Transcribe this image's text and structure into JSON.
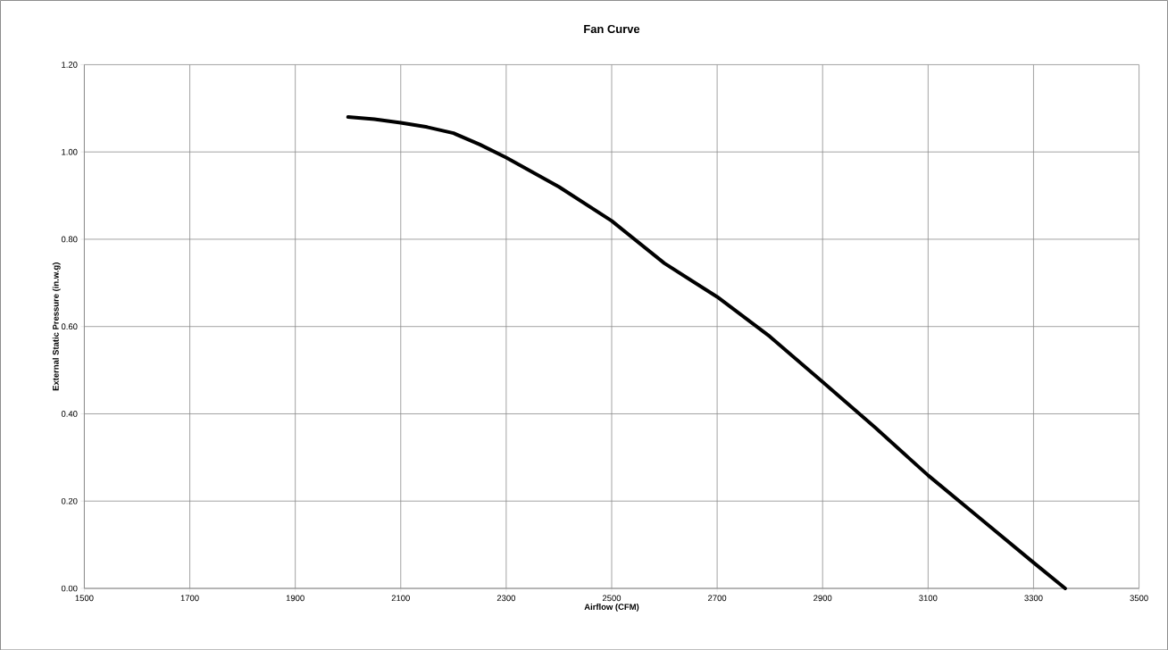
{
  "chart_data": {
    "type": "line",
    "title": "Fan Curve",
    "xlabel": "Airflow (CFM)",
    "ylabel": "External Static Pressure (in.w.g)",
    "x": [
      2000,
      2050,
      2100,
      2150,
      2200,
      2250,
      2300,
      2400,
      2500,
      2600,
      2700,
      2800,
      2900,
      3000,
      3100,
      3200,
      3300,
      3360
    ],
    "values": [
      1.08,
      1.075,
      1.067,
      1.057,
      1.043,
      1.017,
      0.987,
      0.92,
      0.842,
      0.745,
      0.668,
      0.577,
      0.473,
      0.368,
      0.259,
      0.159,
      0.059,
      0.0
    ],
    "color": "#000000",
    "line_style": "solid",
    "marker": "none",
    "grid": true,
    "xlim": [
      1500,
      3500
    ],
    "ylim": [
      0,
      1.2
    ],
    "xticks": [
      1500,
      1700,
      1900,
      2100,
      2300,
      2500,
      2700,
      2900,
      3100,
      3300,
      3500
    ],
    "yticks": [
      {
        "value": 0,
        "label": "0.00"
      },
      {
        "value": 0.2,
        "label": "0.20"
      },
      {
        "value": 0.4,
        "label": "0.40"
      },
      {
        "value": 0.6,
        "label": "0.60"
      },
      {
        "value": 0.8,
        "label": "0.80"
      },
      {
        "value": 1.0,
        "label": "1.00"
      },
      {
        "value": 1.2,
        "label": "1.20"
      }
    ]
  }
}
